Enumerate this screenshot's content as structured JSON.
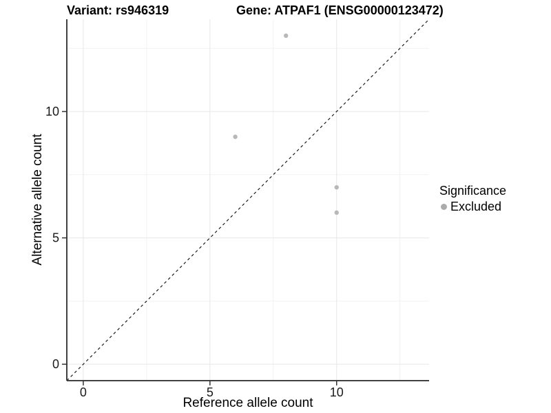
{
  "chart_data": {
    "type": "scatter",
    "title_left": "Variant: rs946319",
    "title_right": "Gene: ATPAF1 (ENSG00000123472)",
    "xlabel": "Reference allele count",
    "ylabel": "Alternative allele count",
    "xlim": [
      -0.65,
      13.65
    ],
    "ylim": [
      -0.65,
      13.65
    ],
    "x_ticks": [
      0,
      5,
      10
    ],
    "y_ticks": [
      0,
      5,
      10
    ],
    "x_minor_ticks": [
      2.5,
      7.5,
      12.5
    ],
    "y_minor_ticks": [
      2.5,
      7.5,
      12.5
    ],
    "grid": true,
    "identity_line": {
      "style": "dashed",
      "slope": 1,
      "intercept": 0
    },
    "series": [
      {
        "name": "Excluded",
        "color": "#b8b8b8",
        "point_radius": 3.2,
        "points": [
          [
            8,
            13
          ],
          [
            6,
            9
          ],
          [
            10,
            7
          ],
          [
            10,
            6
          ]
        ]
      }
    ],
    "legend": {
      "title": "Significance",
      "position": "right",
      "entries": [
        {
          "label": "Excluded",
          "color": "#ababab"
        }
      ]
    },
    "colors": {
      "background": "#ffffff",
      "grid_major": "#e7e7e7",
      "grid_minor": "#f2f2f2",
      "axis_line": "#404040",
      "tick_mark": "#333333",
      "tick_label": "#1a1a1a",
      "identity_line": "#1a1a1a"
    }
  }
}
